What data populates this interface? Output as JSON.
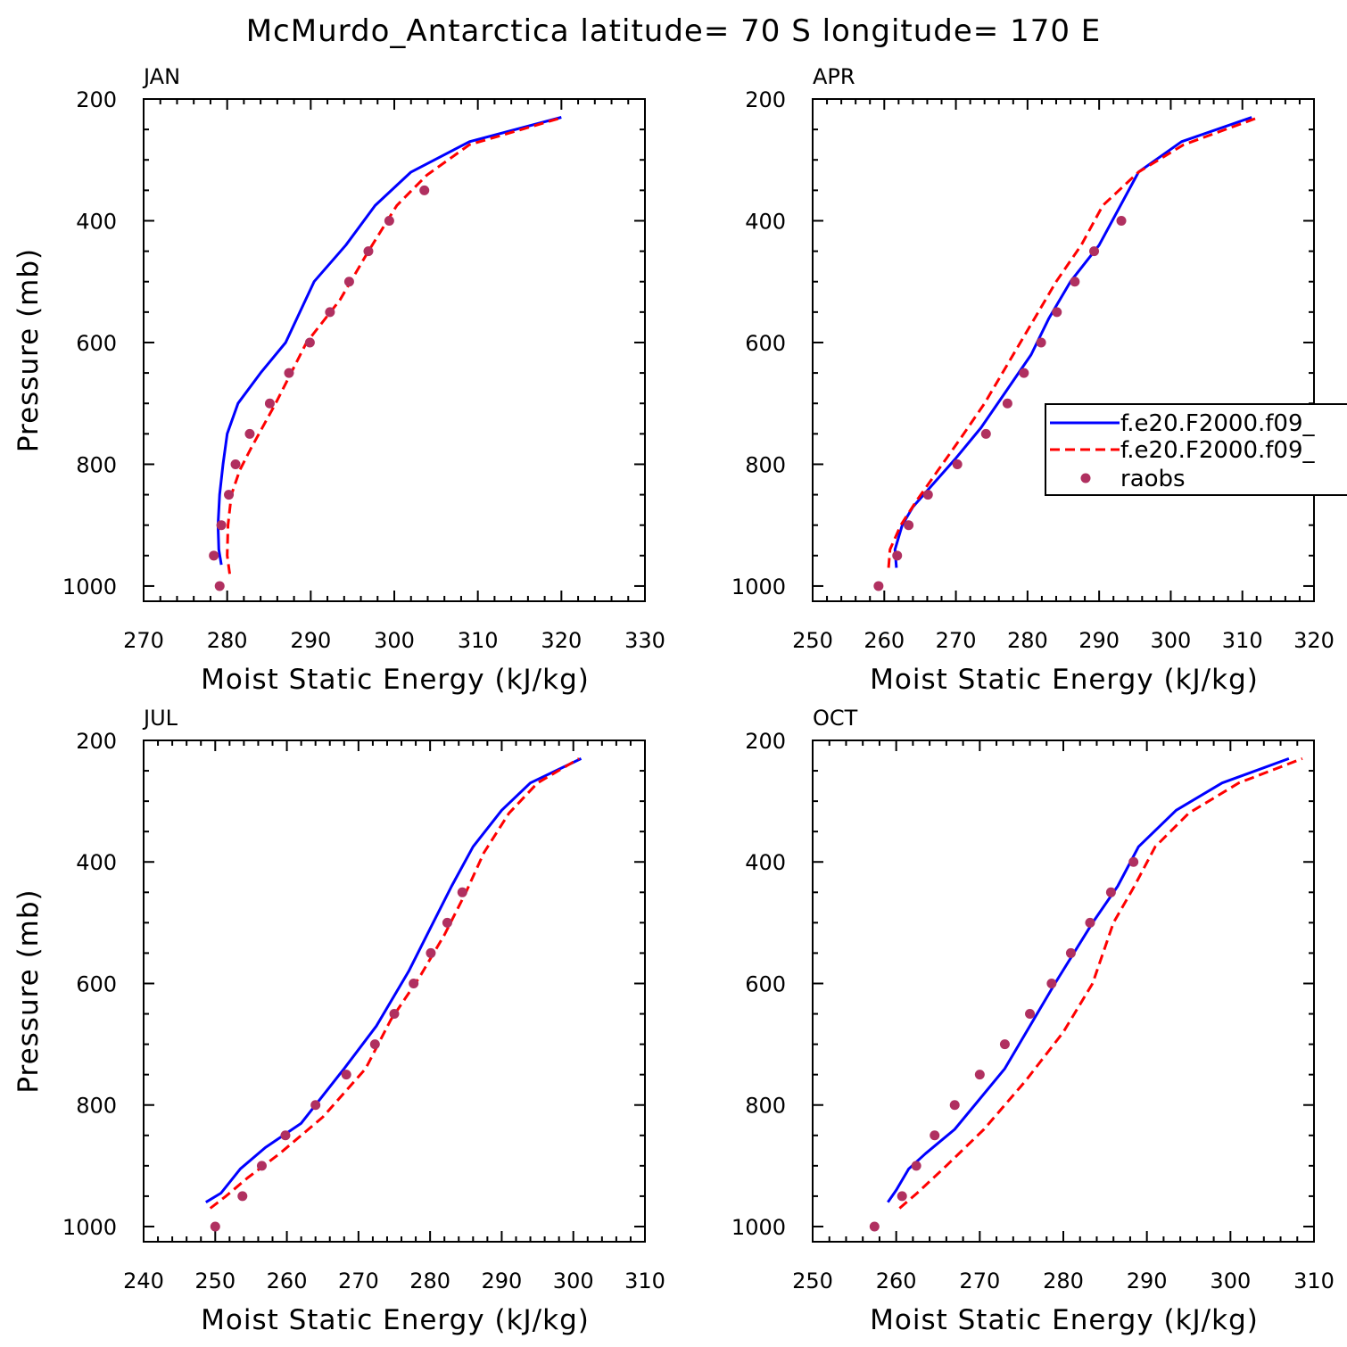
{
  "figure": {
    "title": "McMurdo_Antarctica  latitude= 70 S longitude= 170 E"
  },
  "legend": {
    "entries": [
      {
        "label": "f.e20.F2000.f09_",
        "style": "solid",
        "color": "#0000ff"
      },
      {
        "label": "f.e20.F2000.f09_",
        "style": "dashed",
        "color": "#ff0000"
      },
      {
        "label": "raobs",
        "style": "marker",
        "color": "#b03060"
      }
    ]
  },
  "chart_data": [
    {
      "type": "line",
      "panel": "JAN",
      "xlabel": "Moist Static Energy (kJ/kg)",
      "ylabel": "Pressure (mb)",
      "xlim": [
        270,
        330
      ],
      "ylim": [
        1025,
        200
      ],
      "xticks": [
        270,
        280,
        290,
        300,
        310,
        320,
        330
      ],
      "yticks": [
        200,
        400,
        600,
        800,
        1000
      ],
      "series": [
        {
          "name": "f.e20.F2000.f09_ (solid)",
          "color": "#0000ff",
          "dash": false,
          "x": [
            279.3,
            279.0,
            278.9,
            279.1,
            279.5,
            280.0,
            281.3,
            284.0,
            287.0,
            290.4,
            294.2,
            297.7,
            302.0,
            309.0,
            320.0
          ],
          "y": [
            965,
            940,
            900,
            850,
            800,
            750,
            700,
            650,
            600,
            500,
            440,
            375,
            320,
            270,
            230
          ]
        },
        {
          "name": "f.e20.F2000.f09_ (dashed)",
          "color": "#ff0000",
          "dash": true,
          "x": [
            280.3,
            280.0,
            280.1,
            280.5,
            281.5,
            282.8,
            285.8,
            289.5,
            293.5,
            296.9,
            300.3,
            303.9,
            309.0,
            320.2
          ],
          "y": [
            980,
            950,
            900,
            850,
            810,
            775,
            700,
            600,
            530,
            450,
            375,
            325,
            275,
            230
          ]
        },
        {
          "name": "raobs",
          "color": "#b03060",
          "marker": true,
          "x": [
            279.1,
            278.4,
            279.3,
            280.2,
            281.0,
            282.7,
            285.1,
            287.4,
            289.9,
            292.3,
            294.6,
            296.9,
            299.4,
            303.6
          ],
          "y": [
            1000,
            950,
            900,
            850,
            800,
            750,
            700,
            650,
            600,
            550,
            500,
            450,
            400,
            350
          ]
        }
      ]
    },
    {
      "type": "line",
      "panel": "APR",
      "xlabel": "Moist Static Energy (kJ/kg)",
      "ylabel": "",
      "xlim": [
        250,
        320
      ],
      "ylim": [
        1025,
        200
      ],
      "xticks": [
        250,
        260,
        270,
        280,
        290,
        300,
        310,
        320
      ],
      "yticks": [
        200,
        400,
        600,
        800,
        1000
      ],
      "series": [
        {
          "name": "f.e20.F2000.f09_ (solid)",
          "color": "#0000ff",
          "dash": false,
          "x": [
            261.7,
            261.5,
            262.5,
            264.0,
            267.0,
            270.0,
            273.5,
            277.0,
            280.5,
            283.0,
            286.0,
            290.0,
            295.5,
            301.5,
            311.3
          ],
          "y": [
            970,
            940,
            900,
            870,
            830,
            790,
            740,
            680,
            620,
            560,
            500,
            440,
            320,
            270,
            230
          ]
        },
        {
          "name": "f.e20.F2000.f09_ (dashed)",
          "color": "#ff0000",
          "dash": true,
          "x": [
            260.6,
            260.8,
            262.3,
            264.5,
            267.5,
            270.5,
            274.0,
            277.5,
            281.0,
            284.0,
            287.5,
            290.5,
            295.5,
            301.8,
            312.3
          ],
          "y": [
            970,
            940,
            900,
            860,
            810,
            760,
            700,
            630,
            560,
            500,
            440,
            375,
            320,
            275,
            230
          ]
        },
        {
          "name": "raobs",
          "color": "#b03060",
          "marker": true,
          "x": [
            259.2,
            261.8,
            263.4,
            266.1,
            270.2,
            274.2,
            277.2,
            279.5,
            281.9,
            284.1,
            286.6,
            289.3,
            293.1
          ],
          "y": [
            1000,
            950,
            900,
            850,
            800,
            750,
            700,
            650,
            600,
            550,
            500,
            450,
            400
          ]
        }
      ]
    },
    {
      "type": "line",
      "panel": "JUL",
      "xlabel": "Moist Static Energy (kJ/kg)",
      "ylabel": "Pressure (mb)",
      "xlim": [
        240,
        310
      ],
      "ylim": [
        1025,
        200
      ],
      "xticks": [
        240,
        250,
        260,
        270,
        280,
        290,
        300,
        310
      ],
      "yticks": [
        200,
        400,
        600,
        800,
        1000
      ],
      "series": [
        {
          "name": "f.e20.F2000.f09_ (solid)",
          "color": "#0000ff",
          "dash": false,
          "x": [
            248.7,
            250.8,
            253.5,
            257.0,
            262.0,
            268.0,
            272.5,
            277.0,
            280.0,
            283.0,
            286.0,
            290.0,
            294.0,
            301.1
          ],
          "y": [
            960,
            945,
            905,
            870,
            830,
            740,
            670,
            580,
            510,
            440,
            375,
            315,
            270,
            230
          ]
        },
        {
          "name": "f.e20.F2000.f09_ (dashed)",
          "color": "#ff0000",
          "dash": true,
          "x": [
            249.3,
            251.5,
            254.5,
            259.0,
            265.0,
            271.0,
            274.5,
            278.5,
            282.0,
            285.0,
            287.5,
            291.0,
            295.0,
            300.8
          ],
          "y": [
            970,
            950,
            920,
            880,
            820,
            740,
            660,
            590,
            520,
            450,
            385,
            320,
            270,
            230
          ]
        },
        {
          "name": "raobs",
          "color": "#b03060",
          "marker": true,
          "x": [
            250.0,
            253.8,
            256.5,
            259.8,
            264.0,
            268.3,
            272.3,
            275.0,
            277.7,
            280.1,
            282.4,
            284.5
          ],
          "y": [
            1000,
            950,
            900,
            850,
            800,
            750,
            700,
            650,
            600,
            550,
            500,
            450
          ]
        }
      ]
    },
    {
      "type": "line",
      "panel": "OCT",
      "xlabel": "Moist Static Energy (kJ/kg)",
      "ylabel": "",
      "xlim": [
        250,
        310
      ],
      "ylim": [
        1025,
        200
      ],
      "xticks": [
        250,
        260,
        270,
        280,
        290,
        300,
        310
      ],
      "yticks": [
        200,
        400,
        600,
        800,
        1000
      ],
      "series": [
        {
          "name": "f.e20.F2000.f09_ (solid)",
          "color": "#0000ff",
          "dash": false,
          "x": [
            259.0,
            260.0,
            261.5,
            263.5,
            267.0,
            273.0,
            279.0,
            283.5,
            286.5,
            289.0,
            293.5,
            299.0,
            307.0
          ],
          "y": [
            960,
            940,
            905,
            880,
            840,
            740,
            600,
            500,
            440,
            375,
            315,
            270,
            230
          ]
        },
        {
          "name": "f.e20.F2000.f09_ (dashed)",
          "color": "#ff0000",
          "dash": true,
          "x": [
            260.4,
            262.5,
            266.0,
            270.5,
            275.5,
            280.0,
            283.5,
            286.0,
            288.5,
            291.0,
            295.0,
            301.0,
            308.6
          ],
          "y": [
            970,
            945,
            900,
            840,
            760,
            680,
            600,
            500,
            440,
            375,
            320,
            270,
            230
          ]
        },
        {
          "name": "raobs",
          "color": "#b03060",
          "marker": true,
          "x": [
            257.4,
            260.7,
            262.4,
            264.6,
            267.0,
            270.0,
            273.0,
            276.0,
            278.6,
            280.9,
            283.2,
            285.7,
            288.4
          ],
          "y": [
            1000,
            950,
            900,
            850,
            800,
            750,
            700,
            650,
            600,
            550,
            500,
            450,
            400
          ]
        }
      ]
    }
  ]
}
